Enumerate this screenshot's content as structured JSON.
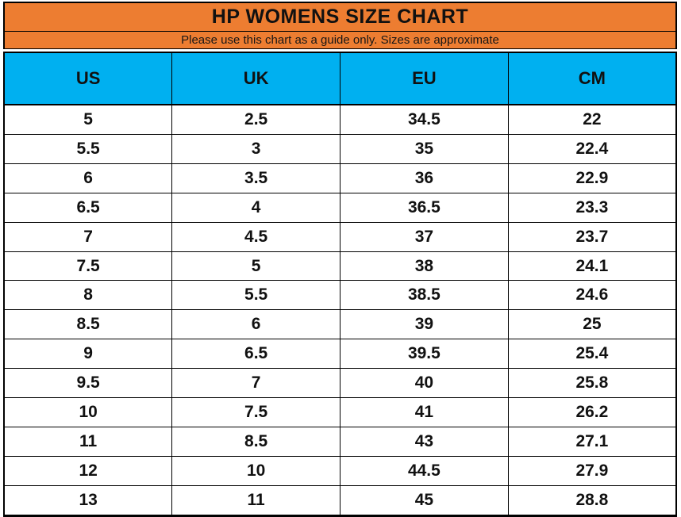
{
  "title": "HP WOMENS SIZE CHART",
  "subtitle": "Please use this chart as a guide only. Sizes are approximate",
  "colors": {
    "title_band": "#ED7D31",
    "header_band": "#00B0F0",
    "gridline": "#000000",
    "text": "#111111"
  },
  "table": {
    "columns": [
      "US",
      "UK",
      "EU",
      "CM"
    ],
    "rows": [
      [
        "5",
        "2.5",
        "34.5",
        "22"
      ],
      [
        "5.5",
        "3",
        "35",
        "22.4"
      ],
      [
        "6",
        "3.5",
        "36",
        "22.9"
      ],
      [
        "6.5",
        "4",
        "36.5",
        "23.3"
      ],
      [
        "7",
        "4.5",
        "37",
        "23.7"
      ],
      [
        "7.5",
        "5",
        "38",
        "24.1"
      ],
      [
        "8",
        "5.5",
        "38.5",
        "24.6"
      ],
      [
        "8.5",
        "6",
        "39",
        "25"
      ],
      [
        "9",
        "6.5",
        "39.5",
        "25.4"
      ],
      [
        "9.5",
        "7",
        "40",
        "25.8"
      ],
      [
        "10",
        "7.5",
        "41",
        "26.2"
      ],
      [
        "11",
        "8.5",
        "43",
        "27.1"
      ],
      [
        "12",
        "10",
        "44.5",
        "27.9"
      ],
      [
        "13",
        "11",
        "45",
        "28.8"
      ]
    ]
  },
  "chart_data": {
    "type": "table",
    "title": "HP WOMENS SIZE CHART",
    "subtitle": "Please use this chart as a guide only. Sizes are approximate",
    "columns": [
      "US",
      "UK",
      "EU",
      "CM"
    ],
    "rows": [
      [
        5,
        2.5,
        34.5,
        22
      ],
      [
        5.5,
        3,
        35,
        22.4
      ],
      [
        6,
        3.5,
        36,
        22.9
      ],
      [
        6.5,
        4,
        36.5,
        23.3
      ],
      [
        7,
        4.5,
        37,
        23.7
      ],
      [
        7.5,
        5,
        38,
        24.1
      ],
      [
        8,
        5.5,
        38.5,
        24.6
      ],
      [
        8.5,
        6,
        39,
        25
      ],
      [
        9,
        6.5,
        39.5,
        25.4
      ],
      [
        9.5,
        7,
        40,
        25.8
      ],
      [
        10,
        7.5,
        41,
        26.2
      ],
      [
        11,
        8.5,
        43,
        27.1
      ],
      [
        12,
        10,
        44.5,
        27.9
      ],
      [
        13,
        11,
        45,
        28.8
      ]
    ]
  }
}
